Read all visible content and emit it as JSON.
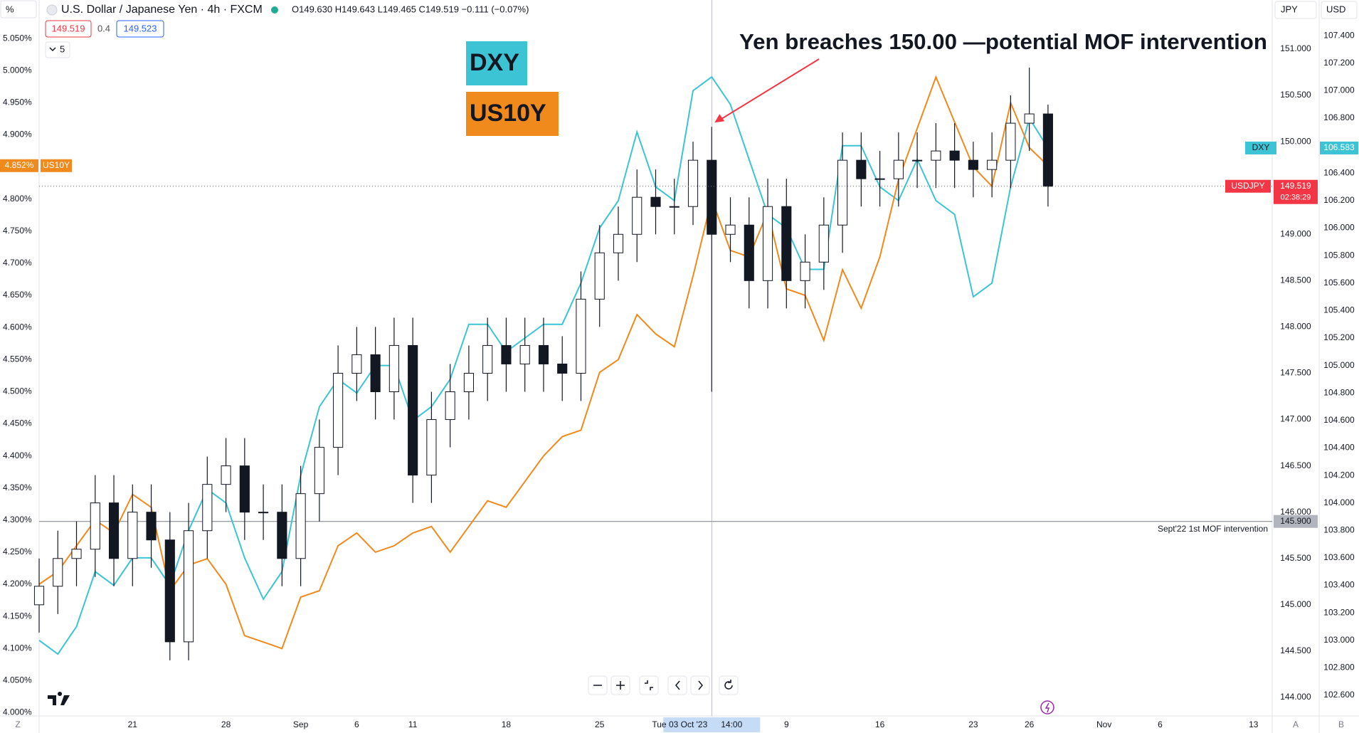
{
  "chart_data": {
    "type": "candlestick",
    "title": "U.S. Dollar / Japanese Yen · 4h · FXCM",
    "ohlc_text": "O149.630 H149.643 L149.465 C149.519 −0.111 (−0.07%)",
    "sell": "149.519",
    "spread": "0.4",
    "buy": "149.523",
    "interval_count": "5",
    "left_unit": "%",
    "right_unit": "JPY",
    "far_right_unit": "USD",
    "corner_left": "Z",
    "corner_a": "A",
    "corner_b": "B",
    "annotation": "Yen breaches 150.00 —potential MOF intervention",
    "crosshair": {
      "x": "2023-10-03",
      "label": "Tue 03 Oct '23",
      "time": "14:00"
    },
    "xlim": [
      "2023-08-14",
      "2023-11-14"
    ],
    "xticks": [
      {
        "value": "2023-08-21",
        "label": "21"
      },
      {
        "value": "2023-08-28",
        "label": "28"
      },
      {
        "value": "2023-09-01",
        "label": "Sep"
      },
      {
        "value": "2023-09-06",
        "label": "6"
      },
      {
        "value": "2023-09-11",
        "label": "11"
      },
      {
        "value": "2023-09-18",
        "label": "18"
      },
      {
        "value": "2023-09-25",
        "label": "25"
      },
      {
        "value": "2023-10-09",
        "label": "9"
      },
      {
        "value": "2023-10-16",
        "label": "16"
      },
      {
        "value": "2023-10-23",
        "label": "23"
      },
      {
        "value": "2023-10-26",
        "label": "26"
      },
      {
        "value": "2023-11-01",
        "label": "Nov"
      },
      {
        "value": "2023-11-06",
        "label": "6"
      },
      {
        "value": "2023-11-13",
        "label": "13"
      }
    ],
    "x": [
      "2023-08-14",
      "2023-08-15",
      "2023-08-16",
      "2023-08-17",
      "2023-08-18",
      "2023-08-21",
      "2023-08-22",
      "2023-08-23",
      "2023-08-24",
      "2023-08-25",
      "2023-08-28",
      "2023-08-29",
      "2023-08-30",
      "2023-08-31",
      "2023-09-01",
      "2023-09-04",
      "2023-09-05",
      "2023-09-06",
      "2023-09-07",
      "2023-09-08",
      "2023-09-11",
      "2023-09-12",
      "2023-09-13",
      "2023-09-14",
      "2023-09-15",
      "2023-09-18",
      "2023-09-19",
      "2023-09-20",
      "2023-09-21",
      "2023-09-22",
      "2023-09-25",
      "2023-09-26",
      "2023-09-27",
      "2023-09-28",
      "2023-09-29",
      "2023-10-02",
      "2023-10-03",
      "2023-10-04",
      "2023-10-05",
      "2023-10-06",
      "2023-10-09",
      "2023-10-10",
      "2023-10-11",
      "2023-10-12",
      "2023-10-13",
      "2023-10-16",
      "2023-10-17",
      "2023-10-18",
      "2023-10-19",
      "2023-10-20",
      "2023-10-23",
      "2023-10-24",
      "2023-10-25",
      "2023-10-26",
      "2023-10-27"
    ],
    "ylim": [
      143.8,
      151.53
    ],
    "yticks": [
      {
        "value": 144,
        "label": "144.000"
      },
      {
        "value": 144.5,
        "label": "144.500"
      },
      {
        "value": 145,
        "label": "145.000"
      },
      {
        "value": 145.5,
        "label": "145.500"
      },
      {
        "value": 146,
        "label": "146.000"
      },
      {
        "value": 146.5,
        "label": "146.500"
      },
      {
        "value": 147,
        "label": "147.000"
      },
      {
        "value": 147.5,
        "label": "147.500"
      },
      {
        "value": 148,
        "label": "148.000"
      },
      {
        "value": 148.5,
        "label": "148.500"
      },
      {
        "value": 149,
        "label": "149.000"
      },
      {
        "value": 149.5,
        "label": "149.500"
      },
      {
        "value": 150,
        "label": "150.000"
      },
      {
        "value": 150.5,
        "label": "150.500"
      },
      {
        "value": 151,
        "label": "151.000"
      }
    ],
    "y2lim": [
      3.995,
      5.11
    ],
    "y2ticks": [
      {
        "value": 4,
        "label": "4.000%"
      },
      {
        "value": 4.05,
        "label": "4.050%"
      },
      {
        "value": 4.1,
        "label": "4.100%"
      },
      {
        "value": 4.15,
        "label": "4.150%"
      },
      {
        "value": 4.2,
        "label": "4.200%"
      },
      {
        "value": 4.25,
        "label": "4.250%"
      },
      {
        "value": 4.3,
        "label": "4.300%"
      },
      {
        "value": 4.35,
        "label": "4.350%"
      },
      {
        "value": 4.4,
        "label": "4.400%"
      },
      {
        "value": 4.45,
        "label": "4.450%"
      },
      {
        "value": 4.5,
        "label": "4.500%"
      },
      {
        "value": 4.55,
        "label": "4.550%"
      },
      {
        "value": 4.6,
        "label": "4.600%"
      },
      {
        "value": 4.65,
        "label": "4.650%"
      },
      {
        "value": 4.7,
        "label": "4.700%"
      },
      {
        "value": 4.75,
        "label": "4.750%"
      },
      {
        "value": 4.8,
        "label": "4.800%"
      },
      {
        "value": 4.85,
        "label": "4.850%"
      },
      {
        "value": 4.9,
        "label": "4.900%"
      },
      {
        "value": 4.95,
        "label": "4.950%"
      },
      {
        "value": 5,
        "label": "5.000%"
      },
      {
        "value": 5.05,
        "label": "5.050%"
      }
    ],
    "y3lim": [
      102.45,
      107.66
    ],
    "y3ticks": [
      {
        "value": 102.6,
        "label": "102.600"
      },
      {
        "value": 102.8,
        "label": "102.800"
      },
      {
        "value": 103,
        "label": "103.000"
      },
      {
        "value": 103.2,
        "label": "103.200"
      },
      {
        "value": 103.4,
        "label": "103.400"
      },
      {
        "value": 103.6,
        "label": "103.600"
      },
      {
        "value": 103.8,
        "label": "103.800"
      },
      {
        "value": 104,
        "label": "104.000"
      },
      {
        "value": 104.2,
        "label": "104.200"
      },
      {
        "value": 104.4,
        "label": "104.400"
      },
      {
        "value": 104.6,
        "label": "104.600"
      },
      {
        "value": 104.8,
        "label": "104.800"
      },
      {
        "value": 105,
        "label": "105.000"
      },
      {
        "value": 105.2,
        "label": "105.200"
      },
      {
        "value": 105.4,
        "label": "105.400"
      },
      {
        "value": 105.6,
        "label": "105.600"
      },
      {
        "value": 105.8,
        "label": "105.800"
      },
      {
        "value": 106,
        "label": "106.000"
      },
      {
        "value": 106.2,
        "label": "106.200"
      },
      {
        "value": 106.4,
        "label": "106.400"
      },
      {
        "value": 106.6,
        "label": "106.600"
      },
      {
        "value": 106.8,
        "label": "106.800"
      },
      {
        "value": 107,
        "label": "107.000"
      },
      {
        "value": 107.2,
        "label": "107.200"
      },
      {
        "value": 107.4,
        "label": "107.400"
      }
    ],
    "hlines": [
      {
        "value": 145.9,
        "label": "145.900",
        "text": "Sept'22 1st MOF intervention",
        "color": "#787b86"
      }
    ],
    "series": [
      {
        "name": "USDJPY",
        "color": "#f23645",
        "last_label": "149.519",
        "countdown": "02:38:29",
        "open": [
          145.0,
          145.2,
          145.5,
          145.6,
          146.1,
          145.5,
          146.0,
          145.7,
          144.6,
          145.8,
          146.3,
          146.5,
          146.0,
          146.0,
          145.5,
          146.2,
          146.7,
          147.5,
          147.7,
          147.3,
          147.8,
          146.4,
          147.0,
          147.3,
          147.5,
          147.8,
          147.6,
          147.8,
          147.6,
          147.5,
          148.3,
          148.8,
          149.0,
          149.4,
          149.3,
          149.3,
          149.8,
          149.0,
          149.1,
          148.5,
          149.3,
          148.5,
          148.7,
          149.1,
          149.8,
          149.6,
          149.6,
          149.8,
          149.8,
          149.9,
          149.8,
          149.7,
          149.8,
          150.2,
          150.3
        ],
        "high": [
          145.5,
          145.8,
          145.9,
          146.4,
          146.4,
          146.3,
          146.3,
          146.0,
          146.1,
          146.6,
          146.8,
          146.8,
          146.3,
          146.3,
          146.5,
          147.0,
          147.8,
          148.0,
          148.0,
          148.1,
          148.1,
          147.3,
          147.6,
          147.8,
          148.1,
          148.1,
          148.1,
          148.1,
          147.9,
          148.6,
          149.1,
          149.3,
          149.7,
          149.7,
          149.6,
          150.0,
          150.16,
          149.4,
          149.4,
          149.6,
          149.6,
          149.0,
          149.4,
          150.1,
          150.1,
          149.9,
          150.1,
          150.1,
          150.2,
          150.2,
          150.0,
          150.1,
          150.5,
          150.8,
          150.4
        ],
        "low": [
          144.7,
          144.9,
          145.2,
          145.3,
          145.2,
          145.2,
          145.4,
          144.4,
          144.4,
          145.5,
          146.0,
          145.7,
          145.7,
          145.2,
          145.2,
          145.9,
          146.4,
          147.2,
          147.0,
          147.0,
          146.1,
          146.1,
          146.7,
          147.0,
          147.2,
          147.3,
          147.3,
          147.3,
          147.2,
          147.2,
          148.0,
          148.5,
          148.7,
          149.0,
          149.0,
          149.1,
          147.3,
          148.7,
          148.2,
          148.2,
          148.2,
          148.2,
          148.4,
          148.8,
          149.3,
          149.3,
          149.3,
          149.5,
          149.5,
          149.5,
          149.4,
          149.4,
          149.5,
          149.9,
          149.3
        ],
        "close": [
          145.2,
          145.5,
          145.6,
          146.1,
          145.5,
          146.0,
          145.7,
          144.6,
          145.8,
          146.3,
          146.5,
          146.0,
          146.0,
          145.5,
          146.2,
          146.7,
          147.5,
          147.7,
          147.3,
          147.8,
          146.4,
          147.0,
          147.3,
          147.5,
          147.8,
          147.6,
          147.8,
          147.6,
          147.5,
          148.3,
          148.8,
          149.0,
          149.4,
          149.3,
          149.3,
          149.8,
          149.0,
          149.1,
          148.5,
          149.3,
          148.5,
          148.7,
          149.1,
          149.8,
          149.6,
          149.6,
          149.8,
          149.8,
          149.9,
          149.8,
          149.7,
          149.8,
          150.2,
          150.3,
          149.519
        ]
      },
      {
        "name": "DXY",
        "color": "#3cc4d4",
        "axis": "y3",
        "last_label": "106.583",
        "values": [
          103.0,
          102.9,
          103.1,
          103.5,
          103.4,
          103.6,
          103.6,
          103.4,
          103.8,
          104.1,
          104.0,
          103.6,
          103.3,
          103.5,
          104.2,
          104.7,
          104.9,
          104.8,
          105.0,
          105.0,
          104.6,
          104.7,
          104.9,
          105.3,
          105.3,
          105.1,
          105.2,
          105.3,
          105.3,
          105.6,
          106.0,
          106.2,
          106.7,
          106.3,
          106.2,
          107.0,
          107.1,
          106.9,
          106.5,
          106.1,
          106.0,
          105.7,
          105.7,
          106.6,
          106.6,
          106.3,
          106.2,
          106.5,
          106.2,
          106.1,
          105.5,
          105.6,
          106.3,
          106.8,
          106.583
        ]
      },
      {
        "name": "US10Y",
        "color": "#f08a1c",
        "axis": "y2",
        "last_label": "4.852%",
        "values": [
          4.2,
          4.22,
          4.26,
          4.3,
          4.28,
          4.34,
          4.32,
          4.19,
          4.23,
          4.24,
          4.2,
          4.12,
          4.11,
          4.1,
          4.18,
          4.19,
          4.26,
          4.28,
          4.25,
          4.26,
          4.28,
          4.29,
          4.25,
          4.29,
          4.33,
          4.32,
          4.36,
          4.4,
          4.43,
          4.44,
          4.53,
          4.55,
          4.62,
          4.59,
          4.57,
          4.68,
          4.8,
          4.72,
          4.71,
          4.78,
          4.66,
          4.65,
          4.58,
          4.69,
          4.63,
          4.71,
          4.83,
          4.91,
          4.99,
          4.92,
          4.85,
          4.82,
          4.95,
          4.88,
          4.852
        ]
      }
    ]
  }
}
